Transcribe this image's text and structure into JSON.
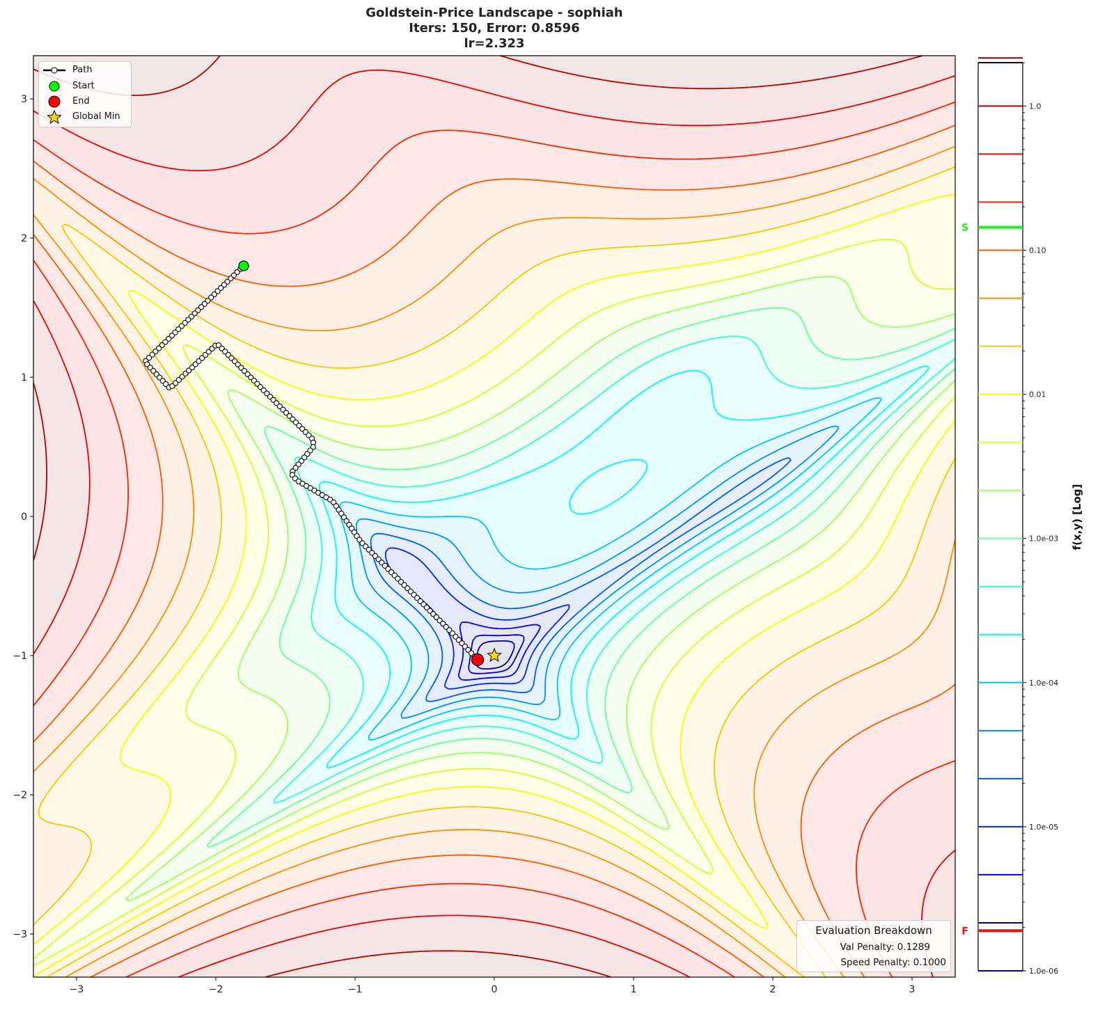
{
  "title": {
    "line1": "Goldstein-Price Landscape - sophiah",
    "line2": "Iters: 150, Error: 0.8596",
    "line3": "lr=2.323"
  },
  "chart_data": {
    "type": "contour",
    "function": "Goldstein-Price",
    "xlim": [
      -3.31,
      3.31
    ],
    "ylim": [
      -3.31,
      3.31
    ],
    "x_ticks": [
      "−3",
      "−2",
      "−1",
      "0",
      "1",
      "2",
      "3"
    ],
    "y_ticks": [
      "−3",
      "−2",
      "−1",
      "0",
      "1",
      "2",
      "3"
    ],
    "x_tick_values": [
      -3,
      -2,
      -1,
      0,
      1,
      2,
      3
    ],
    "y_tick_values": [
      -3,
      -2,
      -1,
      0,
      1,
      2,
      3
    ],
    "colormap": "jet",
    "contour_levels_log10": {
      "min": -6,
      "step": 0.3333,
      "count": 20
    },
    "path": {
      "name": "Path",
      "iterations": 150,
      "waypoints": [
        [
          -1.8,
          1.8
        ],
        [
          -2.51,
          1.11
        ],
        [
          -2.33,
          0.92
        ],
        [
          -1.99,
          1.24
        ],
        [
          -1.3,
          0.55
        ],
        [
          -1.3,
          0.5
        ],
        [
          -1.46,
          0.31
        ],
        [
          -1.42,
          0.26
        ],
        [
          -1.16,
          0.11
        ],
        [
          -0.96,
          -0.18
        ],
        [
          -0.56,
          -0.58
        ],
        [
          -0.31,
          -0.83
        ],
        [
          -0.12,
          -1.03
        ]
      ],
      "color": "#000000"
    },
    "start": {
      "name": "Start",
      "x": -1.8,
      "y": 1.8,
      "color": "#00ff00"
    },
    "end": {
      "name": "End",
      "x": -0.12,
      "y": -1.03,
      "color": "#ff0000"
    },
    "global_min": {
      "name": "Global Min",
      "x": 0,
      "y": -1,
      "color": "#ffd700"
    },
    "legend_position": "upper-left",
    "colorbar": {
      "label": "f(x,y) [Log]",
      "scale": "log",
      "range": [
        1e-06,
        2.0
      ],
      "tick_values": [
        1.0,
        0.1,
        0.01,
        0.001,
        0.0001,
        1e-05,
        1e-06
      ],
      "tick_labels": [
        "1.0",
        "0.10",
        "0.01",
        "1.0e-03",
        "1.0e-04",
        "1.0e-05",
        "1.0e-06"
      ],
      "start_marker": {
        "label": "S",
        "value": 0.144,
        "color": "#22ee22"
      },
      "final_marker": {
        "label": "F",
        "value": 1.9e-06,
        "color": "#ee1111"
      }
    }
  },
  "evaluation": {
    "title": "Evaluation Breakdown",
    "val_penalty": "Val Penalty: 0.1289",
    "speed_penalty": "Speed Penalty: 0.1000"
  }
}
